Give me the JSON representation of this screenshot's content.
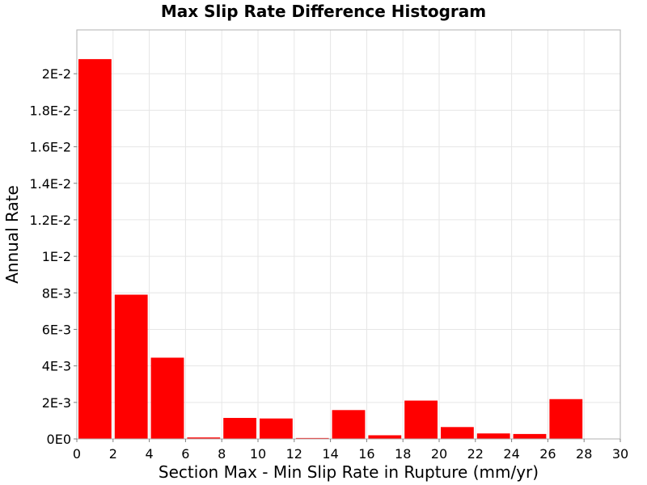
{
  "chart_data": {
    "type": "bar",
    "title": "Max Slip Rate Difference Histogram",
    "xlabel": "Section Max - Min Slip Rate in Rupture (mm/yr)",
    "ylabel": "Annual Rate",
    "xlim": [
      0,
      30
    ],
    "ylim": [
      0,
      0.0224
    ],
    "grid": true,
    "bar_color": "#ff0000",
    "bin_width": 2,
    "x_ticks": [
      0,
      2,
      4,
      6,
      8,
      10,
      12,
      14,
      16,
      18,
      20,
      22,
      24,
      26,
      28,
      30
    ],
    "x_tick_labels": [
      "0",
      "2",
      "4",
      "6",
      "8",
      "10",
      "12",
      "14",
      "16",
      "18",
      "20",
      "22",
      "24",
      "26",
      "28",
      "30"
    ],
    "y_ticks": [
      0,
      0.002,
      0.004,
      0.006,
      0.008,
      0.01,
      0.012,
      0.014,
      0.016,
      0.018,
      0.02
    ],
    "y_tick_labels": [
      "0E0",
      "2E-3",
      "4E-3",
      "6E-3",
      "8E-3",
      "1E-2",
      "1.2E-2",
      "1.4E-2",
      "1.6E-2",
      "1.8E-2",
      "2E-2"
    ],
    "bins": [
      {
        "x": 1,
        "value": 0.0208
      },
      {
        "x": 3,
        "value": 0.0079
      },
      {
        "x": 5,
        "value": 0.00445
      },
      {
        "x": 7,
        "value": 8e-05
      },
      {
        "x": 9,
        "value": 0.00115
      },
      {
        "x": 11,
        "value": 0.00112
      },
      {
        "x": 13,
        "value": 5e-05
      },
      {
        "x": 15,
        "value": 0.00158
      },
      {
        "x": 17,
        "value": 0.0002
      },
      {
        "x": 19,
        "value": 0.0021
      },
      {
        "x": 21,
        "value": 0.00065
      },
      {
        "x": 23,
        "value": 0.0003
      },
      {
        "x": 25,
        "value": 0.00027
      },
      {
        "x": 27,
        "value": 0.00218
      },
      {
        "x": 29,
        "value": 0.0
      }
    ]
  }
}
